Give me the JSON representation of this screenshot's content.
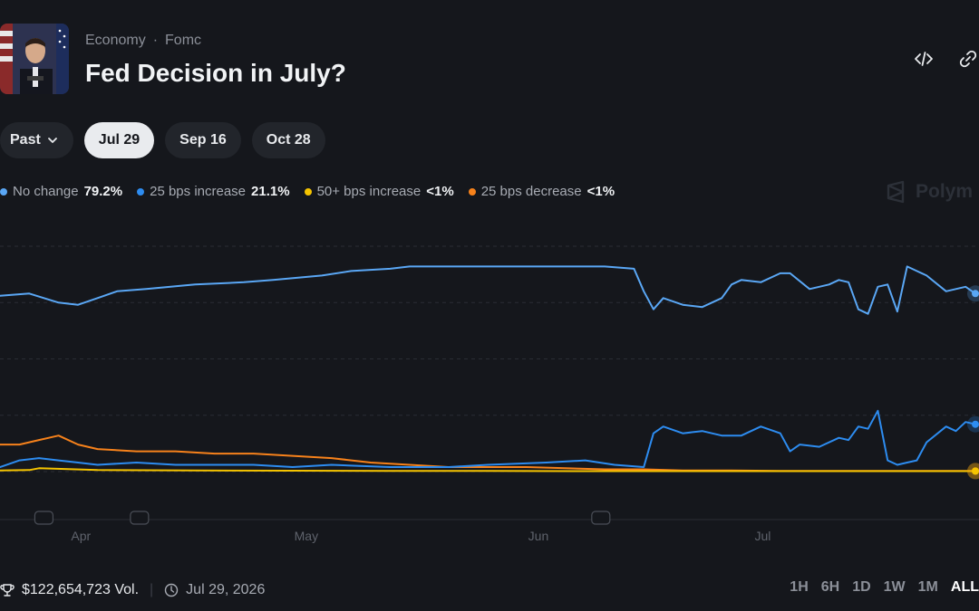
{
  "header": {
    "breadcrumb": [
      "Economy",
      "Fomc"
    ],
    "title": "Fed Decision in July?",
    "icons": [
      "embed-icon",
      "link-icon"
    ]
  },
  "tabs": {
    "past_label": "Past",
    "dates": [
      "Jul 29",
      "Sep 16",
      "Oct 28"
    ],
    "active": "Jul 29"
  },
  "legend": [
    {
      "name": "No change",
      "value": "79.2%",
      "color": "#5aa7f5"
    },
    {
      "name": "25 bps increase",
      "value": "21.1%",
      "color": "#2d8cf0"
    },
    {
      "name": "50+ bps increase",
      "value": "<1%",
      "color": "#f5c400"
    },
    {
      "name": "25 bps decrease",
      "value": "<1%",
      "color": "#f7821b"
    }
  ],
  "watermark": "Polym",
  "chart_data": {
    "type": "line",
    "x_ticks": [
      "Apr",
      "May",
      "Jun",
      "Jul"
    ],
    "ylim": [
      0,
      100
    ],
    "grid": "horizontal",
    "series": [
      {
        "name": "No change",
        "color": "#5aa7f5",
        "x": [
          0,
          3,
          6,
          8,
          10,
          12,
          15,
          20,
          25,
          28,
          33,
          36,
          40,
          42,
          46,
          50,
          56,
          60,
          62,
          65,
          66,
          67,
          68,
          70,
          72,
          74,
          75,
          76,
          78,
          80,
          81,
          83,
          85,
          86,
          87,
          88,
          89,
          90,
          91,
          92,
          93,
          94,
          95,
          97,
          99,
          100
        ],
        "y": [
          78,
          79,
          75,
          74,
          77,
          80,
          81,
          83,
          84,
          85,
          87,
          89,
          90,
          91,
          91,
          91,
          91,
          91,
          91,
          90,
          80,
          72,
          77,
          74,
          73,
          77,
          83,
          85,
          84,
          88,
          88,
          81,
          83,
          85,
          84,
          72,
          70,
          82,
          83,
          71,
          91,
          89,
          87,
          80,
          82,
          79
        ]
      },
      {
        "name": "25 bps increase",
        "color": "#2d8cf0",
        "x": [
          0,
          2,
          4,
          6,
          8,
          10,
          14,
          18,
          22,
          26,
          30,
          34,
          40,
          46,
          50,
          56,
          60,
          63,
          66,
          67,
          68,
          70,
          72,
          74,
          76,
          78,
          80,
          81,
          82,
          84,
          86,
          87,
          88,
          89,
          90,
          91,
          92,
          93,
          94,
          95,
          97,
          98,
          99,
          100
        ],
        "y": [
          2,
          5,
          6,
          5,
          4,
          3,
          4,
          3,
          3,
          3,
          2,
          3,
          2,
          2,
          3,
          4,
          5,
          3,
          2,
          17,
          20,
          17,
          18,
          16,
          16,
          20,
          17,
          9,
          12,
          11,
          15,
          14,
          20,
          19,
          27,
          5,
          3,
          4,
          5,
          13,
          20,
          18,
          22,
          21
        ]
      },
      {
        "name": "50+ bps increase",
        "color": "#f5c400",
        "x": [
          0,
          3,
          4,
          10,
          20,
          30,
          40,
          50,
          60,
          70,
          80,
          90,
          100
        ],
        "y": [
          0.5,
          0.7,
          1.5,
          0.7,
          0.5,
          0.4,
          0.3,
          0.3,
          0.2,
          0.2,
          0.2,
          0.2,
          0.2
        ]
      },
      {
        "name": "25 bps decrease",
        "color": "#f7821b",
        "x": [
          0,
          2,
          4,
          5,
          6,
          8,
          10,
          14,
          18,
          22,
          26,
          30,
          34,
          38,
          42,
          46,
          50,
          54,
          58,
          62,
          66,
          70,
          75,
          80,
          85,
          90,
          95,
          100
        ],
        "y": [
          12,
          12,
          14,
          15,
          16,
          12,
          10,
          9,
          9,
          8,
          8,
          7,
          6,
          4,
          3,
          2,
          2,
          2,
          1.5,
          1,
          1,
          0.5,
          0.5,
          0.3,
          0.3,
          0.3,
          0.3,
          0.3
        ]
      }
    ]
  },
  "footer": {
    "volume": "$122,654,723 Vol.",
    "date": "Jul 29, 2026",
    "ranges": [
      "1H",
      "6H",
      "1D",
      "1W",
      "1M",
      "ALL"
    ],
    "active_range": "ALL"
  }
}
